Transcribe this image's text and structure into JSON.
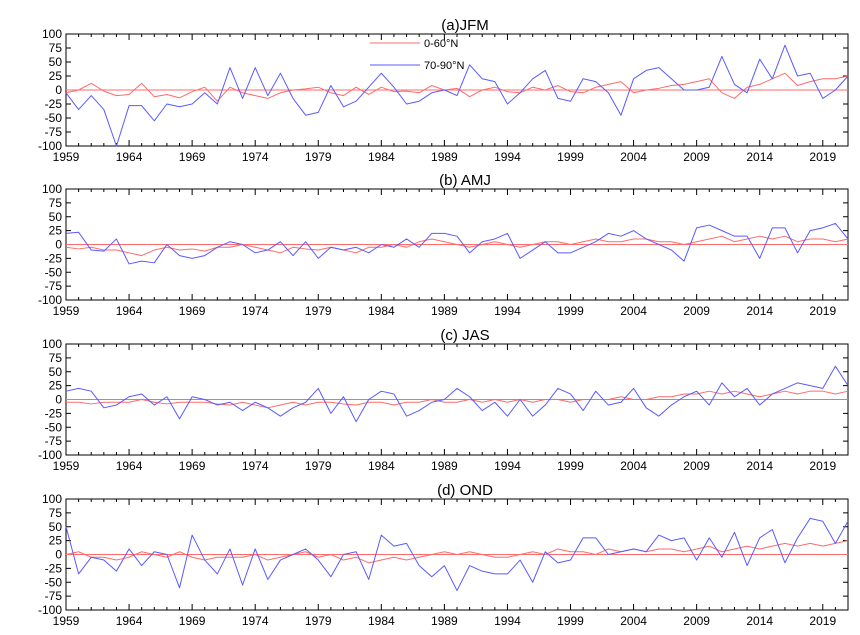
{
  "colors": {
    "series_0_60": "#ff6b6b",
    "series_70_90": "#5a5aff",
    "zero_line": "#ff6b6b",
    "axis": "#000000"
  },
  "chart_data": [
    {
      "type": "line",
      "title": "(a)JFM",
      "x": [
        1959,
        1960,
        1961,
        1962,
        1963,
        1964,
        1965,
        1966,
        1967,
        1968,
        1969,
        1970,
        1971,
        1972,
        1973,
        1974,
        1975,
        1976,
        1977,
        1978,
        1979,
        1980,
        1981,
        1982,
        1983,
        1984,
        1985,
        1986,
        1987,
        1988,
        1989,
        1990,
        1991,
        1992,
        1993,
        1994,
        1995,
        1996,
        1997,
        1998,
        1999,
        2000,
        2001,
        2002,
        2003,
        2004,
        2005,
        2006,
        2007,
        2008,
        2009,
        2010,
        2011,
        2012,
        2013,
        2014,
        2015,
        2016,
        2017,
        2018,
        2019,
        2020,
        2021
      ],
      "xlim": [
        1959,
        2021
      ],
      "ylim": [
        -100,
        100
      ],
      "xticks": [
        "1959",
        "1964",
        "1969",
        "1974",
        "1979",
        "1984",
        "1989",
        "1994",
        "1999",
        "2004",
        "2009",
        "2014",
        "2019"
      ],
      "yticks": [
        "100",
        "75",
        "50",
        "25",
        "0",
        "-25",
        "-50",
        "-75",
        "-100"
      ],
      "legend": {
        "position": "top-center",
        "entries": [
          "0-60°N",
          "70-90°N"
        ]
      },
      "series": [
        {
          "name": "0-60°N",
          "color": "#ff6b6b",
          "values": [
            -5,
            0,
            12,
            -2,
            -10,
            -8,
            12,
            -12,
            -8,
            -14,
            -3,
            5,
            -20,
            5,
            -5,
            -10,
            -15,
            -5,
            0,
            2,
            5,
            -5,
            -10,
            5,
            -8,
            5,
            -3,
            -2,
            -5,
            8,
            0,
            3,
            -12,
            0,
            5,
            -3,
            -5,
            5,
            0,
            8,
            -3,
            -5,
            5,
            10,
            15,
            -5,
            0,
            3,
            8,
            10,
            15,
            20,
            -5,
            -15,
            5,
            10,
            20,
            30,
            8,
            15,
            20,
            20,
            25
          ]
        },
        {
          "name": "70-90°N",
          "color": "#5a5aff",
          "values": [
            -5,
            -35,
            -10,
            -35,
            -100,
            -28,
            -28,
            -55,
            -25,
            -30,
            -25,
            -5,
            -25,
            40,
            -15,
            40,
            -10,
            30,
            -15,
            -45,
            -40,
            8,
            -30,
            -20,
            5,
            30,
            5,
            -25,
            -20,
            -5,
            0,
            -10,
            45,
            20,
            15,
            -25,
            -5,
            20,
            35,
            -15,
            -20,
            20,
            15,
            -5,
            -45,
            20,
            35,
            40,
            20,
            0,
            0,
            5,
            60,
            10,
            -5,
            55,
            20,
            80,
            25,
            30,
            -15,
            0,
            25
          ]
        }
      ]
    },
    {
      "type": "line",
      "title": "(b) AMJ",
      "x": [
        1959,
        1960,
        1961,
        1962,
        1963,
        1964,
        1965,
        1966,
        1967,
        1968,
        1969,
        1970,
        1971,
        1972,
        1973,
        1974,
        1975,
        1976,
        1977,
        1978,
        1979,
        1980,
        1981,
        1982,
        1983,
        1984,
        1985,
        1986,
        1987,
        1988,
        1989,
        1990,
        1991,
        1992,
        1993,
        1994,
        1995,
        1996,
        1997,
        1998,
        1999,
        2000,
        2001,
        2002,
        2003,
        2004,
        2005,
        2006,
        2007,
        2008,
        2009,
        2010,
        2011,
        2012,
        2013,
        2014,
        2015,
        2016,
        2017,
        2018,
        2019,
        2020,
        2021
      ],
      "xlim": [
        1959,
        2021
      ],
      "ylim": [
        -100,
        100
      ],
      "xticks": [
        "1959",
        "1964",
        "1969",
        "1974",
        "1979",
        "1984",
        "1989",
        "1994",
        "1999",
        "2004",
        "2009",
        "2014",
        "2019"
      ],
      "yticks": [
        "100",
        "75",
        "50",
        "25",
        "0",
        "-25",
        "-50",
        "-75",
        "-100"
      ],
      "series": [
        {
          "name": "0-60°N",
          "color": "#ff6b6b",
          "values": [
            -5,
            -8,
            -5,
            -10,
            -10,
            -15,
            -20,
            -10,
            -5,
            -10,
            -8,
            -12,
            -5,
            -5,
            0,
            -5,
            -10,
            -15,
            -5,
            -8,
            -10,
            -5,
            -10,
            -15,
            -5,
            -5,
            0,
            -5,
            5,
            10,
            5,
            0,
            -5,
            0,
            5,
            0,
            -5,
            0,
            5,
            5,
            0,
            5,
            10,
            5,
            5,
            10,
            10,
            5,
            5,
            0,
            5,
            10,
            15,
            5,
            10,
            15,
            10,
            15,
            5,
            10,
            10,
            5,
            10
          ]
        },
        {
          "name": "70-90°N",
          "color": "#5a5aff",
          "values": [
            20,
            22,
            -10,
            -12,
            10,
            -35,
            -30,
            -33,
            0,
            -20,
            -25,
            -20,
            -5,
            5,
            0,
            -15,
            -10,
            5,
            -20,
            5,
            -25,
            -5,
            -10,
            -5,
            -15,
            0,
            -5,
            10,
            -5,
            20,
            20,
            15,
            -15,
            5,
            10,
            20,
            -25,
            -10,
            5,
            -15,
            -15,
            -5,
            5,
            20,
            15,
            25,
            10,
            0,
            -10,
            -30,
            30,
            35,
            25,
            15,
            15,
            -25,
            30,
            30,
            -15,
            25,
            30,
            38,
            10
          ]
        }
      ]
    },
    {
      "type": "line",
      "title": "(c) JAS",
      "x": [
        1959,
        1960,
        1961,
        1962,
        1963,
        1964,
        1965,
        1966,
        1967,
        1968,
        1969,
        1970,
        1971,
        1972,
        1973,
        1974,
        1975,
        1976,
        1977,
        1978,
        1979,
        1980,
        1981,
        1982,
        1983,
        1984,
        1985,
        1986,
        1987,
        1988,
        1989,
        1990,
        1991,
        1992,
        1993,
        1994,
        1995,
        1996,
        1997,
        1998,
        1999,
        2000,
        2001,
        2002,
        2003,
        2004,
        2005,
        2006,
        2007,
        2008,
        2009,
        2010,
        2011,
        2012,
        2013,
        2014,
        2015,
        2016,
        2017,
        2018,
        2019,
        2020,
        2021
      ],
      "xlim": [
        1959,
        2021
      ],
      "ylim": [
        -100,
        100
      ],
      "xticks": [
        "1959",
        "1964",
        "1969",
        "1974",
        "1979",
        "1984",
        "1989",
        "1994",
        "1999",
        "2004",
        "2009",
        "2014",
        "2019"
      ],
      "yticks": [
        "100",
        "75",
        "50",
        "25",
        "0",
        "-25",
        "-50",
        "-75",
        "-100"
      ],
      "series": [
        {
          "name": "0-60°N",
          "color": "#ff6b6b",
          "values": [
            -5,
            -5,
            -8,
            -5,
            -5,
            -5,
            0,
            -5,
            -8,
            -5,
            -5,
            -5,
            -8,
            -10,
            -5,
            -10,
            -15,
            -10,
            -5,
            -10,
            -5,
            -5,
            -8,
            -10,
            -5,
            -5,
            -10,
            -5,
            -5,
            0,
            -5,
            -5,
            0,
            -5,
            0,
            -5,
            0,
            -5,
            0,
            0,
            -5,
            0,
            0,
            0,
            5,
            0,
            0,
            5,
            5,
            10,
            10,
            15,
            10,
            15,
            10,
            5,
            10,
            15,
            10,
            15,
            15,
            10,
            15
          ]
        },
        {
          "name": "70-90°N",
          "color": "#5a5aff",
          "values": [
            15,
            20,
            15,
            -15,
            -10,
            5,
            10,
            -10,
            5,
            -35,
            5,
            0,
            -10,
            -5,
            -20,
            -5,
            -15,
            -30,
            -15,
            -5,
            20,
            -25,
            5,
            -40,
            0,
            15,
            10,
            -30,
            -20,
            -5,
            0,
            20,
            5,
            -20,
            -5,
            -30,
            0,
            -30,
            -10,
            20,
            10,
            -20,
            15,
            -10,
            -5,
            20,
            -15,
            -30,
            -10,
            5,
            15,
            -10,
            30,
            5,
            20,
            -10,
            10,
            20,
            30,
            25,
            20,
            60,
            25
          ]
        }
      ]
    },
    {
      "type": "line",
      "title": "(d) OND",
      "x": [
        1959,
        1960,
        1961,
        1962,
        1963,
        1964,
        1965,
        1966,
        1967,
        1968,
        1969,
        1970,
        1971,
        1972,
        1973,
        1974,
        1975,
        1976,
        1977,
        1978,
        1979,
        1980,
        1981,
        1982,
        1983,
        1984,
        1985,
        1986,
        1987,
        1988,
        1989,
        1990,
        1991,
        1992,
        1993,
        1994,
        1995,
        1996,
        1997,
        1998,
        1999,
        2000,
        2001,
        2002,
        2003,
        2004,
        2005,
        2006,
        2007,
        2008,
        2009,
        2010,
        2011,
        2012,
        2013,
        2014,
        2015,
        2016,
        2017,
        2018,
        2019,
        2020,
        2021
      ],
      "xlim": [
        1959,
        2021
      ],
      "ylim": [
        -100,
        100
      ],
      "xticks": [
        "1959",
        "1964",
        "1969",
        "1974",
        "1979",
        "1984",
        "1989",
        "1994",
        "1999",
        "2004",
        "2009",
        "2014",
        "2019"
      ],
      "yticks": [
        "100",
        "75",
        "50",
        "25",
        "0",
        "-25",
        "-50",
        "-75",
        "-100"
      ],
      "series": [
        {
          "name": "0-60°N",
          "color": "#ff6b6b",
          "values": [
            0,
            5,
            -5,
            -5,
            -10,
            -5,
            5,
            0,
            -5,
            5,
            -5,
            -10,
            -5,
            -5,
            -5,
            0,
            -10,
            -5,
            0,
            5,
            -5,
            0,
            -10,
            -5,
            -15,
            -10,
            -5,
            -10,
            -5,
            0,
            5,
            0,
            5,
            0,
            -5,
            -5,
            0,
            5,
            0,
            10,
            5,
            5,
            0,
            10,
            5,
            10,
            5,
            10,
            10,
            5,
            10,
            15,
            5,
            10,
            15,
            10,
            15,
            20,
            15,
            20,
            15,
            20,
            25
          ]
        },
        {
          "name": "70-90°N",
          "color": "#5a5aff",
          "values": [
            50,
            -35,
            -5,
            -10,
            -30,
            10,
            -20,
            5,
            0,
            -60,
            35,
            -10,
            -35,
            10,
            -55,
            10,
            -45,
            -10,
            0,
            10,
            -10,
            -40,
            0,
            5,
            -45,
            35,
            15,
            20,
            -20,
            -40,
            -20,
            -65,
            -20,
            -30,
            -35,
            -35,
            -10,
            -50,
            5,
            -15,
            -10,
            30,
            30,
            0,
            5,
            10,
            5,
            35,
            25,
            30,
            -10,
            30,
            -5,
            40,
            -20,
            30,
            45,
            -15,
            30,
            65,
            60,
            20,
            60
          ]
        }
      ]
    }
  ]
}
